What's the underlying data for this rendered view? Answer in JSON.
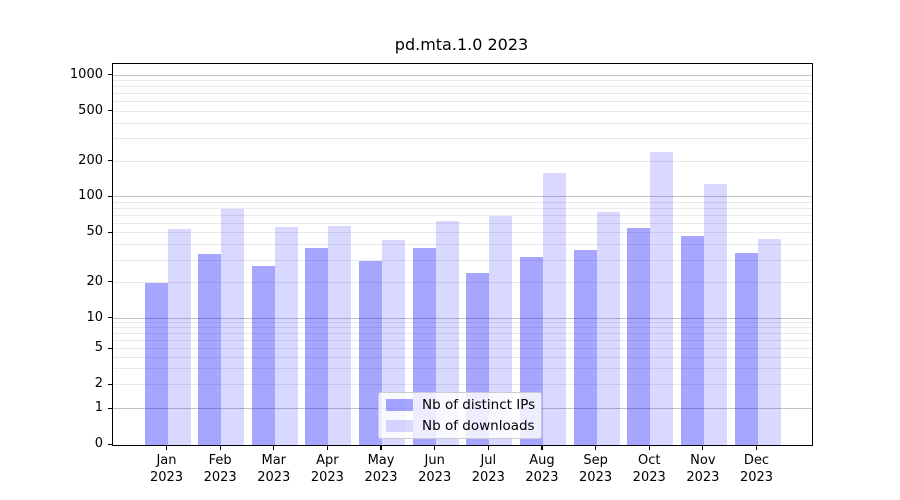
{
  "chart_data": {
    "type": "bar",
    "title": "pd.mta.1.0 2023",
    "categories": [
      "Jan 2023",
      "Feb 2023",
      "Mar 2023",
      "Apr 2023",
      "May 2023",
      "Jun 2023",
      "Jul 2023",
      "Aug 2023",
      "Sep 2023",
      "Oct 2023",
      "Nov 2023",
      "Dec 2023"
    ],
    "series": [
      {
        "name": "Nb of distinct IPs",
        "color": "rgba(0,0,255,0.35)",
        "values": [
          20,
          34,
          27,
          38,
          30,
          38,
          24,
          32,
          37,
          55,
          48,
          35
        ]
      },
      {
        "name": "Nb of downloads",
        "color": "rgba(0,0,255,0.15)",
        "values": [
          54,
          80,
          57,
          58,
          44,
          63,
          70,
          160,
          75,
          240,
          130,
          45
        ]
      }
    ],
    "xlabel": "",
    "ylabel": "",
    "yscale": "symlog",
    "ylim": [
      0,
      1500
    ],
    "y_tick_values": [
      0,
      1,
      2,
      5,
      10,
      20,
      50,
      100,
      200,
      500,
      1000
    ],
    "y_tick_labels": [
      "0",
      "1",
      "2",
      "5",
      "10",
      "20",
      "50",
      "100",
      "200",
      "500",
      "1000"
    ],
    "grid": "both",
    "legend_position": "lower center"
  }
}
